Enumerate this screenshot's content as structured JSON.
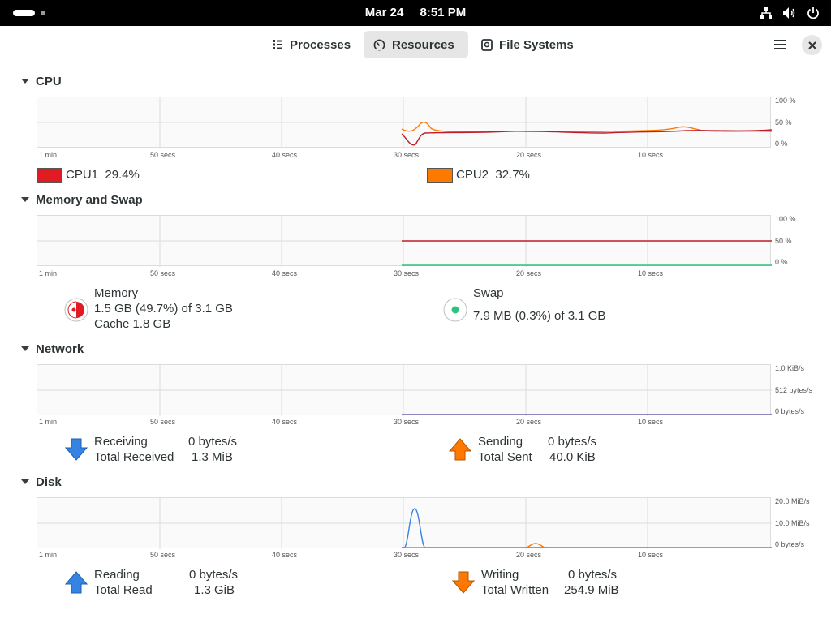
{
  "topbar": {
    "date": "Mar 24",
    "time": "8:51 PM",
    "icons": [
      "network-icon",
      "volume-icon",
      "power-icon"
    ]
  },
  "header": {
    "tabs": [
      {
        "label": "Processes",
        "icon": "list-icon",
        "active": false
      },
      {
        "label": "Resources",
        "icon": "speedometer-icon",
        "active": true
      },
      {
        "label": "File Systems",
        "icon": "disk-icon",
        "active": false
      }
    ],
    "menu_icon": "hamburger-icon",
    "close_icon": "close-icon"
  },
  "time_axis": [
    "1 min",
    "50 secs",
    "40 secs",
    "30 secs",
    "20 secs",
    "10 secs"
  ],
  "cpu": {
    "title": "CPU",
    "y_axis": [
      "100 %",
      "50 %",
      "0 %"
    ],
    "cpu1": {
      "label": "CPU1",
      "value": "29.4%",
      "color": "#e01b24"
    },
    "cpu2": {
      "label": "CPU2",
      "value": "32.7%",
      "color": "#ff7800"
    }
  },
  "memory": {
    "title": "Memory and Swap",
    "y_axis": [
      "100 %",
      "50 %",
      "0 %"
    ],
    "memory_label": "Memory",
    "memory_value": "1.5 GB (49.7%) of 3.1 GB",
    "cache": "Cache 1.8 GB",
    "memory_fraction": 0.497,
    "memory_color": "#e01b24",
    "swap_label": "Swap",
    "swap_value": "7.9 MB (0.3%) of 3.1 GB",
    "swap_fraction": 0.003,
    "swap_color": "#2ec27e"
  },
  "network": {
    "title": "Network",
    "y_axis": [
      "1.0 KiB/s",
      "512 bytes/s",
      "0 bytes/s"
    ],
    "receiving_label": "Receiving",
    "receiving_value": "0 bytes/s",
    "total_received_label": "Total Received",
    "total_received_value": "1.3 MiB",
    "sending_label": "Sending",
    "sending_value": "0 bytes/s",
    "total_sent_label": "Total Sent",
    "total_sent_value": "40.0 KiB"
  },
  "disk": {
    "title": "Disk",
    "y_axis": [
      "20.0 MiB/s",
      "10.0 MiB/s",
      "0 bytes/s"
    ],
    "reading_label": "Reading",
    "reading_value": "0 bytes/s",
    "total_read_label": "Total Read",
    "total_read_value": "1.3 GiB",
    "writing_label": "Writing",
    "writing_value": "0 bytes/s",
    "total_written_label": "Total Written",
    "total_written_value": "254.9 MiB"
  }
}
